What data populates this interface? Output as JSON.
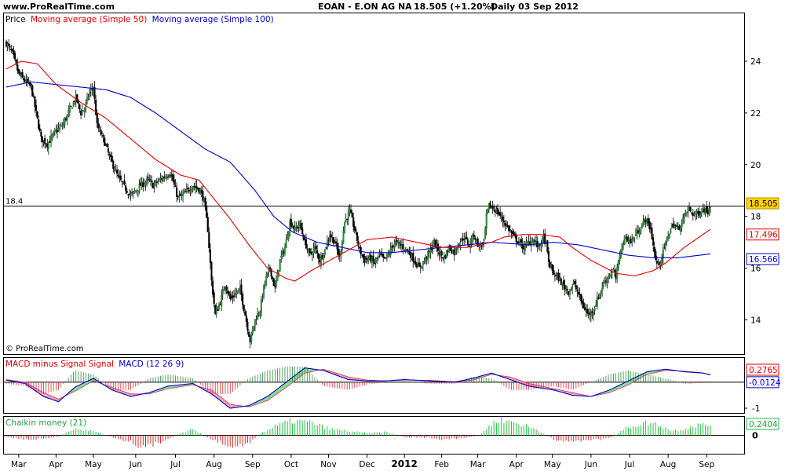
{
  "header": {
    "site": "www.ProRealTime.com",
    "instrument": "EOAN - E.ON AG NA",
    "quote": "18.505 (+1.20%)",
    "period": "Daily  03 Sep 2012"
  },
  "chart_data": [
    {
      "id": "price-panel",
      "type": "candlestick",
      "legend": {
        "price": "Price",
        "ma50": "Moving average (Simple 50)",
        "ma100": "Moving average (Simple 100)"
      },
      "copyright": "© ProRealTime.com",
      "ylim": [
        12.8,
        25.7
      ],
      "yticks": [
        14,
        16,
        18,
        20,
        22,
        24
      ],
      "reference_line": {
        "value": 18.4,
        "label": "18.4"
      },
      "last_values": {
        "price": "18.505",
        "ma50": "17.496",
        "ma100": "16.566"
      },
      "price_anchors": [
        [
          0,
          24.7
        ],
        [
          5,
          24.3
        ],
        [
          10,
          23.5
        ],
        [
          20,
          23.0
        ],
        [
          28,
          21.0
        ],
        [
          33,
          20.8
        ],
        [
          40,
          21.3
        ],
        [
          45,
          21.5
        ],
        [
          52,
          22.2
        ],
        [
          56,
          22.6
        ],
        [
          60,
          22.0
        ],
        [
          63,
          22.2
        ],
        [
          67,
          22.8
        ],
        [
          70,
          23.0
        ],
        [
          73,
          21.5
        ],
        [
          78,
          21.0
        ],
        [
          83,
          20.3
        ],
        [
          90,
          19.5
        ],
        [
          100,
          18.8
        ],
        [
          108,
          19.2
        ],
        [
          114,
          19.4
        ],
        [
          118,
          19.2
        ],
        [
          126,
          19.5
        ],
        [
          132,
          19.7
        ],
        [
          138,
          18.7
        ],
        [
          144,
          18.9
        ],
        [
          150,
          19.2
        ],
        [
          156,
          19.0
        ],
        [
          159,
          18.6
        ],
        [
          162,
          17.5
        ],
        [
          165,
          15.5
        ],
        [
          168,
          14.2
        ],
        [
          172,
          14.7
        ],
        [
          176,
          15.4
        ],
        [
          180,
          14.8
        ],
        [
          184,
          15.0
        ],
        [
          188,
          15.2
        ],
        [
          192,
          14.2
        ],
        [
          196,
          13.2
        ],
        [
          200,
          14.0
        ],
        [
          204,
          14.4
        ],
        [
          208,
          15.5
        ],
        [
          212,
          16.0
        ],
        [
          216,
          15.2
        ],
        [
          220,
          16.3
        ],
        [
          224,
          16.8
        ],
        [
          228,
          17.8
        ],
        [
          232,
          17.5
        ],
        [
          236,
          17.7
        ],
        [
          240,
          17.0
        ],
        [
          244,
          16.5
        ],
        [
          248,
          16.8
        ],
        [
          252,
          16.3
        ],
        [
          256,
          16.7
        ],
        [
          260,
          17.3
        ],
        [
          264,
          17.0
        ],
        [
          268,
          16.4
        ],
        [
          272,
          17.8
        ],
        [
          276,
          18.2
        ],
        [
          280,
          17.5
        ],
        [
          284,
          16.7
        ],
        [
          288,
          16.3
        ],
        [
          292,
          16.4
        ],
        [
          296,
          16.2
        ],
        [
          300,
          16.5
        ],
        [
          304,
          16.3
        ],
        [
          308,
          16.6
        ],
        [
          312,
          17.0
        ],
        [
          316,
          16.9
        ],
        [
          320,
          16.8
        ],
        [
          324,
          16.6
        ],
        [
          328,
          16.3
        ],
        [
          332,
          16.0
        ],
        [
          336,
          16.3
        ],
        [
          340,
          16.6
        ],
        [
          344,
          17.0
        ],
        [
          348,
          16.6
        ],
        [
          352,
          16.4
        ],
        [
          356,
          16.8
        ],
        [
          360,
          16.6
        ],
        [
          364,
          17.0
        ],
        [
          368,
          17.2
        ],
        [
          372,
          16.9
        ],
        [
          376,
          17.3
        ],
        [
          380,
          16.8
        ],
        [
          384,
          17.0
        ],
        [
          386,
          18.0
        ],
        [
          388,
          18.4
        ],
        [
          392,
          18.3
        ],
        [
          396,
          18.1
        ],
        [
          400,
          17.8
        ],
        [
          404,
          17.5
        ],
        [
          408,
          17.2
        ],
        [
          412,
          17.0
        ],
        [
          416,
          16.8
        ],
        [
          420,
          17.0
        ],
        [
          424,
          17.1
        ],
        [
          428,
          16.8
        ],
        [
          432,
          17.2
        ],
        [
          434,
          16.9
        ],
        [
          436,
          16.2
        ],
        [
          440,
          15.8
        ],
        [
          444,
          15.6
        ],
        [
          448,
          15.3
        ],
        [
          452,
          15.1
        ],
        [
          456,
          15.4
        ],
        [
          460,
          15.0
        ],
        [
          464,
          14.5
        ],
        [
          468,
          14.2
        ],
        [
          472,
          14.4
        ],
        [
          476,
          14.9
        ],
        [
          480,
          15.4
        ],
        [
          484,
          15.7
        ],
        [
          488,
          15.9
        ],
        [
          490,
          15.6
        ],
        [
          494,
          16.8
        ],
        [
          498,
          17.2
        ],
        [
          502,
          17.0
        ],
        [
          506,
          17.3
        ],
        [
          510,
          17.6
        ],
        [
          514,
          17.9
        ],
        [
          518,
          17.5
        ],
        [
          522,
          16.3
        ],
        [
          524,
          16.1
        ],
        [
          528,
          16.6
        ],
        [
          532,
          17.3
        ],
        [
          536,
          17.7
        ],
        [
          540,
          17.5
        ],
        [
          544,
          17.9
        ],
        [
          548,
          18.3
        ],
        [
          552,
          18.1
        ],
        [
          556,
          18.1
        ],
        [
          560,
          18.3
        ],
        [
          564,
          18.2
        ],
        [
          566,
          18.5
        ]
      ],
      "ma50_anchors": [
        [
          0,
          23.7
        ],
        [
          12,
          24.0
        ],
        [
          25,
          23.9
        ],
        [
          40,
          23.1
        ],
        [
          60,
          22.4
        ],
        [
          80,
          21.8
        ],
        [
          100,
          21.0
        ],
        [
          120,
          20.2
        ],
        [
          140,
          19.6
        ],
        [
          155,
          19.4
        ],
        [
          165,
          18.8
        ],
        [
          180,
          17.9
        ],
        [
          195,
          16.9
        ],
        [
          210,
          16.0
        ],
        [
          225,
          15.6
        ],
        [
          232,
          15.5
        ],
        [
          245,
          15.9
        ],
        [
          260,
          16.3
        ],
        [
          275,
          16.7
        ],
        [
          290,
          17.1
        ],
        [
          310,
          17.2
        ],
        [
          330,
          17.0
        ],
        [
          350,
          16.8
        ],
        [
          370,
          16.8
        ],
        [
          390,
          17.0
        ],
        [
          400,
          17.2
        ],
        [
          415,
          17.3
        ],
        [
          430,
          17.3
        ],
        [
          445,
          17.2
        ],
        [
          455,
          16.8
        ],
        [
          470,
          16.3
        ],
        [
          490,
          15.8
        ],
        [
          505,
          15.7
        ],
        [
          520,
          15.9
        ],
        [
          530,
          16.2
        ],
        [
          545,
          16.8
        ],
        [
          566,
          17.5
        ]
      ],
      "ma100_anchors": [
        [
          0,
          23.0
        ],
        [
          20,
          23.2
        ],
        [
          40,
          23.1
        ],
        [
          60,
          23.0
        ],
        [
          80,
          22.9
        ],
        [
          100,
          22.6
        ],
        [
          120,
          22.0
        ],
        [
          140,
          21.3
        ],
        [
          160,
          20.6
        ],
        [
          180,
          20.1
        ],
        [
          200,
          19.0
        ],
        [
          215,
          18.0
        ],
        [
          230,
          17.4
        ],
        [
          250,
          17.0
        ],
        [
          270,
          16.8
        ],
        [
          290,
          16.6
        ],
        [
          310,
          16.6
        ],
        [
          330,
          16.7
        ],
        [
          350,
          16.8
        ],
        [
          370,
          16.9
        ],
        [
          390,
          17.0
        ],
        [
          420,
          16.9
        ],
        [
          440,
          17.0
        ],
        [
          460,
          16.9
        ],
        [
          480,
          16.7
        ],
        [
          500,
          16.5
        ],
        [
          520,
          16.4
        ],
        [
          540,
          16.4
        ],
        [
          566,
          16.55
        ]
      ]
    },
    {
      "id": "macd-panel",
      "type": "macd",
      "legend": {
        "hist": "MACD minus Signal Signal",
        "macd": "MACD (12 26 9)"
      },
      "ylim": [
        -1.15,
        0.9
      ],
      "ytick_labels": [
        {
          "value": -1,
          "label": "-1"
        }
      ],
      "last_values": {
        "macd": "0.2765",
        "diff": "-0.0124"
      },
      "macd_anchors": [
        [
          0,
          0.08
        ],
        [
          15,
          -0.05
        ],
        [
          30,
          -0.55
        ],
        [
          42,
          -0.75
        ],
        [
          55,
          -0.2
        ],
        [
          70,
          0.15
        ],
        [
          85,
          -0.3
        ],
        [
          100,
          -0.55
        ],
        [
          115,
          -0.4
        ],
        [
          130,
          -0.15
        ],
        [
          150,
          -0.05
        ],
        [
          165,
          -0.45
        ],
        [
          180,
          -1.0
        ],
        [
          195,
          -0.9
        ],
        [
          210,
          -0.55
        ],
        [
          225,
          0.0
        ],
        [
          240,
          0.55
        ],
        [
          255,
          0.45
        ],
        [
          275,
          0.1
        ],
        [
          290,
          0.05
        ],
        [
          305,
          0.05
        ],
        [
          320,
          0.1
        ],
        [
          340,
          0.05
        ],
        [
          360,
          0.0
        ],
        [
          375,
          0.15
        ],
        [
          390,
          0.35
        ],
        [
          405,
          0.1
        ],
        [
          420,
          -0.15
        ],
        [
          440,
          -0.3
        ],
        [
          455,
          -0.5
        ],
        [
          470,
          -0.55
        ],
        [
          485,
          -0.3
        ],
        [
          500,
          0.05
        ],
        [
          515,
          0.4
        ],
        [
          530,
          0.5
        ],
        [
          545,
          0.4
        ],
        [
          560,
          0.35
        ],
        [
          566,
          0.28
        ]
      ],
      "signal_anchors": [
        [
          0,
          0.1
        ],
        [
          15,
          0.0
        ],
        [
          30,
          -0.4
        ],
        [
          42,
          -0.65
        ],
        [
          55,
          -0.35
        ],
        [
          70,
          0.05
        ],
        [
          85,
          -0.2
        ],
        [
          100,
          -0.45
        ],
        [
          115,
          -0.45
        ],
        [
          130,
          -0.25
        ],
        [
          150,
          -0.1
        ],
        [
          165,
          -0.3
        ],
        [
          180,
          -0.85
        ],
        [
          195,
          -0.95
        ],
        [
          210,
          -0.7
        ],
        [
          225,
          -0.2
        ],
        [
          240,
          0.35
        ],
        [
          255,
          0.5
        ],
        [
          275,
          0.2
        ],
        [
          290,
          0.08
        ],
        [
          305,
          0.05
        ],
        [
          320,
          0.08
        ],
        [
          340,
          0.07
        ],
        [
          360,
          0.02
        ],
        [
          375,
          0.08
        ],
        [
          390,
          0.3
        ],
        [
          405,
          0.2
        ],
        [
          420,
          -0.05
        ],
        [
          440,
          -0.25
        ],
        [
          455,
          -0.4
        ],
        [
          470,
          -0.55
        ],
        [
          485,
          -0.4
        ],
        [
          500,
          -0.1
        ],
        [
          515,
          0.3
        ],
        [
          530,
          0.45
        ],
        [
          545,
          0.42
        ],
        [
          560,
          0.36
        ],
        [
          566,
          0.29
        ]
      ]
    },
    {
      "id": "chaikin-panel",
      "type": "histogram",
      "legend": {
        "label": "Chaikin money (21)"
      },
      "ylim": [
        -0.42,
        0.42
      ],
      "ytick_labels": [
        {
          "value": 0,
          "label": "0"
        }
      ],
      "last_value": "0.2404",
      "anchors": [
        [
          0,
          -0.05
        ],
        [
          20,
          -0.1
        ],
        [
          40,
          -0.05
        ],
        [
          55,
          0.15
        ],
        [
          70,
          0.1
        ],
        [
          85,
          -0.05
        ],
        [
          100,
          -0.15
        ],
        [
          110,
          -0.3
        ],
        [
          125,
          -0.15
        ],
        [
          140,
          0.05
        ],
        [
          150,
          0.15
        ],
        [
          165,
          -0.1
        ],
        [
          180,
          -0.25
        ],
        [
          195,
          -0.2
        ],
        [
          205,
          0.05
        ],
        [
          215,
          0.2
        ],
        [
          230,
          0.35
        ],
        [
          245,
          0.3
        ],
        [
          260,
          0.15
        ],
        [
          275,
          0.1
        ],
        [
          290,
          0.05
        ],
        [
          305,
          0.08
        ],
        [
          320,
          -0.05
        ],
        [
          335,
          -0.05
        ],
        [
          350,
          -0.1
        ],
        [
          365,
          -0.08
        ],
        [
          380,
          0.0
        ],
        [
          395,
          0.38
        ],
        [
          410,
          0.3
        ],
        [
          425,
          0.15
        ],
        [
          440,
          -0.1
        ],
        [
          455,
          -0.15
        ],
        [
          470,
          -0.1
        ],
        [
          485,
          -0.08
        ],
        [
          500,
          0.2
        ],
        [
          515,
          0.3
        ],
        [
          525,
          0.25
        ],
        [
          535,
          0.1
        ],
        [
          545,
          0.15
        ],
        [
          555,
          0.25
        ],
        [
          566,
          0.24
        ]
      ]
    }
  ],
  "x_axis": {
    "labels": [
      {
        "label": "Mar",
        "idx": 10
      },
      {
        "label": "Apr",
        "idx": 40
      },
      {
        "label": "May",
        "idx": 70
      },
      {
        "label": "Jun",
        "idx": 104
      },
      {
        "label": "Jul",
        "idx": 136
      },
      {
        "label": "Aug",
        "idx": 167
      },
      {
        "label": "Sep",
        "idx": 198
      },
      {
        "label": "Oct",
        "idx": 229
      },
      {
        "label": "Nov",
        "idx": 259
      },
      {
        "label": "Dec",
        "idx": 290
      },
      {
        "label": "2012",
        "idx": 320
      },
      {
        "label": "Feb",
        "idx": 350
      },
      {
        "label": "Mar",
        "idx": 379
      },
      {
        "label": "Apr",
        "idx": 410
      },
      {
        "label": "May",
        "idx": 439
      },
      {
        "label": "Jun",
        "idx": 470
      },
      {
        "label": "Jul",
        "idx": 501
      },
      {
        "label": "Aug",
        "idx": 532
      },
      {
        "label": "Sep",
        "idx": 563
      }
    ]
  },
  "colors": {
    "up_candle": "#2e8b3a",
    "down_candle": "#000000",
    "ma50": "#e00000",
    "ma100": "#0000c8",
    "price_badge": "#ffd400",
    "macd_fill_pos": "#7fe08a",
    "macd_fill_neg": "#f2a0b0",
    "chaikin_pos": "#22c040",
    "chaikin_neg": "#d03030"
  }
}
